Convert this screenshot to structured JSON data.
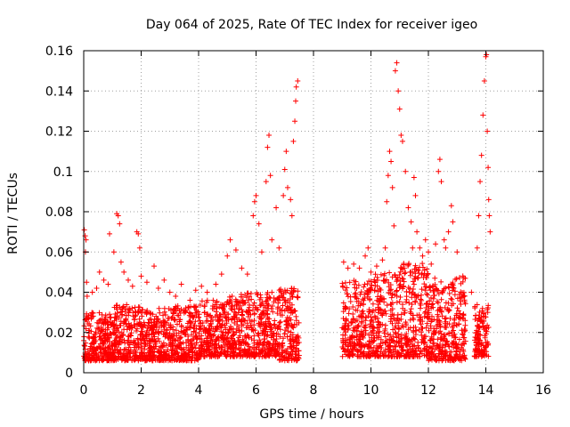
{
  "chart_data": {
    "type": "scatter",
    "title": "Day 064 of 2025, Rate Of TEC Index for receiver igeo",
    "xlabel": "GPS time / hours",
    "ylabel": "ROTI / TECUs",
    "xlim": [
      0,
      16
    ],
    "ylim": [
      0,
      0.16
    ],
    "xticks": [
      0,
      2,
      4,
      6,
      8,
      10,
      12,
      14,
      16
    ],
    "yticks": [
      0,
      0.02,
      0.04,
      0.06,
      0.08,
      0.1,
      0.12,
      0.14,
      0.16
    ],
    "xtick_labels": [
      "0",
      "2",
      "4",
      "6",
      "8",
      "10",
      "12",
      "14",
      "16"
    ],
    "ytick_labels": [
      "0",
      "0.02",
      "0.04",
      "0.06",
      "0.08",
      "0.1",
      "0.12",
      "0.14",
      "0.16"
    ],
    "grid": true,
    "marker": "+",
    "color": "#ff0000",
    "gap_hours": [
      7.5,
      9.0
    ],
    "series": [
      {
        "name": "ROTI",
        "points": [
          [
            0.02,
            0.071
          ],
          [
            0.05,
            0.068
          ],
          [
            0.08,
            0.066
          ],
          [
            0.06,
            0.06
          ],
          [
            0.1,
            0.045
          ],
          [
            0.12,
            0.038
          ],
          [
            0.3,
            0.04
          ],
          [
            0.45,
            0.042
          ],
          [
            0.55,
            0.05
          ],
          [
            0.7,
            0.046
          ],
          [
            0.85,
            0.044
          ],
          [
            0.9,
            0.069
          ],
          [
            1.05,
            0.06
          ],
          [
            1.15,
            0.079
          ],
          [
            1.2,
            0.078
          ],
          [
            1.25,
            0.074
          ],
          [
            1.3,
            0.055
          ],
          [
            1.4,
            0.05
          ],
          [
            1.55,
            0.046
          ],
          [
            1.7,
            0.043
          ],
          [
            1.85,
            0.07
          ],
          [
            1.9,
            0.069
          ],
          [
            1.95,
            0.062
          ],
          [
            2.0,
            0.048
          ],
          [
            2.2,
            0.045
          ],
          [
            2.45,
            0.053
          ],
          [
            2.6,
            0.042
          ],
          [
            2.8,
            0.046
          ],
          [
            3.0,
            0.04
          ],
          [
            3.2,
            0.038
          ],
          [
            3.4,
            0.044
          ],
          [
            3.7,
            0.036
          ],
          [
            3.9,
            0.041
          ],
          [
            4.1,
            0.043
          ],
          [
            4.3,
            0.04
          ],
          [
            4.6,
            0.044
          ],
          [
            4.8,
            0.049
          ],
          [
            5.0,
            0.058
          ],
          [
            5.1,
            0.066
          ],
          [
            5.3,
            0.061
          ],
          [
            5.5,
            0.052
          ],
          [
            5.7,
            0.049
          ],
          [
            5.9,
            0.078
          ],
          [
            5.95,
            0.085
          ],
          [
            6.0,
            0.088
          ],
          [
            6.1,
            0.074
          ],
          [
            6.2,
            0.06
          ],
          [
            6.35,
            0.095
          ],
          [
            6.4,
            0.112
          ],
          [
            6.45,
            0.118
          ],
          [
            6.5,
            0.098
          ],
          [
            6.55,
            0.066
          ],
          [
            6.7,
            0.082
          ],
          [
            6.8,
            0.062
          ],
          [
            6.95,
            0.088
          ],
          [
            7.0,
            0.101
          ],
          [
            7.05,
            0.11
          ],
          [
            7.1,
            0.092
          ],
          [
            7.2,
            0.086
          ],
          [
            7.25,
            0.078
          ],
          [
            7.3,
            0.115
          ],
          [
            7.35,
            0.125
          ],
          [
            7.38,
            0.135
          ],
          [
            7.4,
            0.142
          ],
          [
            7.45,
            0.145
          ],
          [
            9.05,
            0.055
          ],
          [
            9.2,
            0.052
          ],
          [
            9.4,
            0.054
          ],
          [
            9.6,
            0.052
          ],
          [
            9.8,
            0.058
          ],
          [
            9.9,
            0.062
          ],
          [
            10.0,
            0.05
          ],
          [
            10.2,
            0.053
          ],
          [
            10.4,
            0.056
          ],
          [
            10.5,
            0.062
          ],
          [
            10.55,
            0.085
          ],
          [
            10.6,
            0.098
          ],
          [
            10.65,
            0.11
          ],
          [
            10.7,
            0.105
          ],
          [
            10.75,
            0.092
          ],
          [
            10.8,
            0.073
          ],
          [
            10.85,
            0.15
          ],
          [
            10.9,
            0.154
          ],
          [
            10.95,
            0.14
          ],
          [
            11.0,
            0.131
          ],
          [
            11.05,
            0.118
          ],
          [
            11.1,
            0.115
          ],
          [
            11.2,
            0.1
          ],
          [
            11.3,
            0.082
          ],
          [
            11.4,
            0.075
          ],
          [
            11.45,
            0.062
          ],
          [
            11.5,
            0.097
          ],
          [
            11.55,
            0.088
          ],
          [
            11.6,
            0.07
          ],
          [
            11.7,
            0.062
          ],
          [
            11.8,
            0.058
          ],
          [
            11.9,
            0.066
          ],
          [
            12.0,
            0.06
          ],
          [
            12.1,
            0.054
          ],
          [
            12.25,
            0.064
          ],
          [
            12.35,
            0.1
          ],
          [
            12.4,
            0.106
          ],
          [
            12.45,
            0.095
          ],
          [
            12.55,
            0.066
          ],
          [
            12.6,
            0.062
          ],
          [
            12.7,
            0.07
          ],
          [
            12.8,
            0.083
          ],
          [
            12.85,
            0.075
          ],
          [
            13.0,
            0.06
          ],
          [
            13.2,
            0.048
          ],
          [
            13.5,
            0.04
          ],
          [
            13.7,
            0.062
          ],
          [
            13.75,
            0.078
          ],
          [
            13.8,
            0.095
          ],
          [
            13.85,
            0.108
          ],
          [
            13.9,
            0.128
          ],
          [
            13.95,
            0.145
          ],
          [
            14.0,
            0.157
          ],
          [
            14.02,
            0.158
          ],
          [
            14.05,
            0.12
          ],
          [
            14.08,
            0.102
          ],
          [
            14.1,
            0.086
          ],
          [
            14.12,
            0.078
          ],
          [
            14.15,
            0.07
          ]
        ]
      }
    ],
    "dense_band": {
      "description_free": true,
      "segments": [
        {
          "x": [
            0.0,
            1.0
          ],
          "y": [
            0.006,
            0.03
          ]
        },
        {
          "x": [
            1.0,
            2.0
          ],
          "y": [
            0.006,
            0.034
          ]
        },
        {
          "x": [
            2.0,
            3.0
          ],
          "y": [
            0.006,
            0.032
          ]
        },
        {
          "x": [
            3.0,
            4.0
          ],
          "y": [
            0.006,
            0.034
          ]
        },
        {
          "x": [
            4.0,
            5.0
          ],
          "y": [
            0.008,
            0.036
          ]
        },
        {
          "x": [
            5.0,
            6.0
          ],
          "y": [
            0.008,
            0.04
          ]
        },
        {
          "x": [
            6.0,
            6.8
          ],
          "y": [
            0.008,
            0.04
          ]
        },
        {
          "x": [
            6.8,
            7.5
          ],
          "y": [
            0.006,
            0.042
          ]
        },
        {
          "x": [
            9.0,
            10.0
          ],
          "y": [
            0.008,
            0.046
          ]
        },
        {
          "x": [
            10.0,
            11.0
          ],
          "y": [
            0.008,
            0.05
          ]
        },
        {
          "x": [
            11.0,
            12.0
          ],
          "y": [
            0.008,
            0.055
          ]
        },
        {
          "x": [
            12.0,
            13.3
          ],
          "y": [
            0.006,
            0.048
          ]
        },
        {
          "x": [
            13.6,
            14.1
          ],
          "y": [
            0.008,
            0.034
          ]
        }
      ]
    }
  }
}
